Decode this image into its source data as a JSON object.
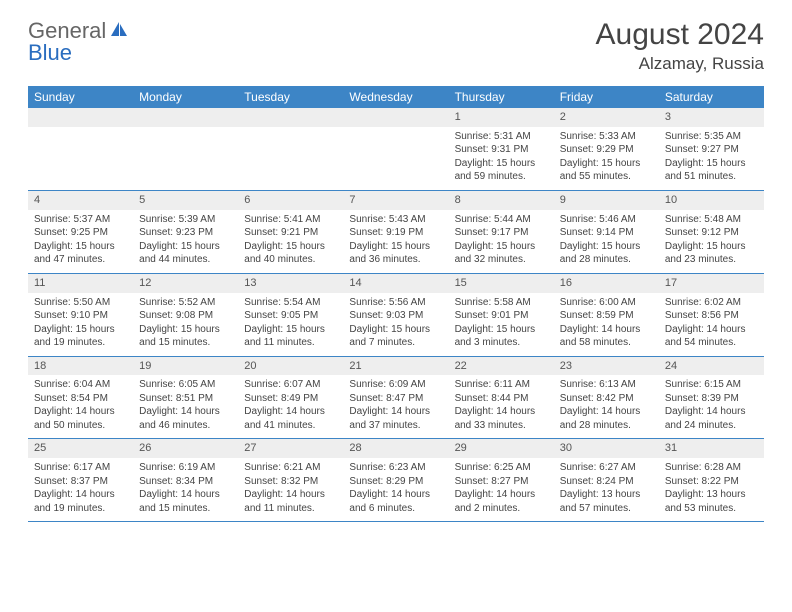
{
  "brand": {
    "word1": "General",
    "word2": "Blue",
    "blue_color": "#2a6dbf"
  },
  "header": {
    "month_title": "August 2024",
    "location": "Alzamay, Russia"
  },
  "colors": {
    "header_bg": "#3d85c6",
    "header_text": "#ffffff",
    "daynum_bg": "#eeeeee",
    "border": "#3d85c6",
    "text": "#444444"
  },
  "day_headers": [
    "Sunday",
    "Monday",
    "Tuesday",
    "Wednesday",
    "Thursday",
    "Friday",
    "Saturday"
  ],
  "weeks": [
    [
      {
        "num": "",
        "l1": "",
        "l2": "",
        "l3": "",
        "l4": ""
      },
      {
        "num": "",
        "l1": "",
        "l2": "",
        "l3": "",
        "l4": ""
      },
      {
        "num": "",
        "l1": "",
        "l2": "",
        "l3": "",
        "l4": ""
      },
      {
        "num": "",
        "l1": "",
        "l2": "",
        "l3": "",
        "l4": ""
      },
      {
        "num": "1",
        "l1": "Sunrise: 5:31 AM",
        "l2": "Sunset: 9:31 PM",
        "l3": "Daylight: 15 hours",
        "l4": "and 59 minutes."
      },
      {
        "num": "2",
        "l1": "Sunrise: 5:33 AM",
        "l2": "Sunset: 9:29 PM",
        "l3": "Daylight: 15 hours",
        "l4": "and 55 minutes."
      },
      {
        "num": "3",
        "l1": "Sunrise: 5:35 AM",
        "l2": "Sunset: 9:27 PM",
        "l3": "Daylight: 15 hours",
        "l4": "and 51 minutes."
      }
    ],
    [
      {
        "num": "4",
        "l1": "Sunrise: 5:37 AM",
        "l2": "Sunset: 9:25 PM",
        "l3": "Daylight: 15 hours",
        "l4": "and 47 minutes."
      },
      {
        "num": "5",
        "l1": "Sunrise: 5:39 AM",
        "l2": "Sunset: 9:23 PM",
        "l3": "Daylight: 15 hours",
        "l4": "and 44 minutes."
      },
      {
        "num": "6",
        "l1": "Sunrise: 5:41 AM",
        "l2": "Sunset: 9:21 PM",
        "l3": "Daylight: 15 hours",
        "l4": "and 40 minutes."
      },
      {
        "num": "7",
        "l1": "Sunrise: 5:43 AM",
        "l2": "Sunset: 9:19 PM",
        "l3": "Daylight: 15 hours",
        "l4": "and 36 minutes."
      },
      {
        "num": "8",
        "l1": "Sunrise: 5:44 AM",
        "l2": "Sunset: 9:17 PM",
        "l3": "Daylight: 15 hours",
        "l4": "and 32 minutes."
      },
      {
        "num": "9",
        "l1": "Sunrise: 5:46 AM",
        "l2": "Sunset: 9:14 PM",
        "l3": "Daylight: 15 hours",
        "l4": "and 28 minutes."
      },
      {
        "num": "10",
        "l1": "Sunrise: 5:48 AM",
        "l2": "Sunset: 9:12 PM",
        "l3": "Daylight: 15 hours",
        "l4": "and 23 minutes."
      }
    ],
    [
      {
        "num": "11",
        "l1": "Sunrise: 5:50 AM",
        "l2": "Sunset: 9:10 PM",
        "l3": "Daylight: 15 hours",
        "l4": "and 19 minutes."
      },
      {
        "num": "12",
        "l1": "Sunrise: 5:52 AM",
        "l2": "Sunset: 9:08 PM",
        "l3": "Daylight: 15 hours",
        "l4": "and 15 minutes."
      },
      {
        "num": "13",
        "l1": "Sunrise: 5:54 AM",
        "l2": "Sunset: 9:05 PM",
        "l3": "Daylight: 15 hours",
        "l4": "and 11 minutes."
      },
      {
        "num": "14",
        "l1": "Sunrise: 5:56 AM",
        "l2": "Sunset: 9:03 PM",
        "l3": "Daylight: 15 hours",
        "l4": "and 7 minutes."
      },
      {
        "num": "15",
        "l1": "Sunrise: 5:58 AM",
        "l2": "Sunset: 9:01 PM",
        "l3": "Daylight: 15 hours",
        "l4": "and 3 minutes."
      },
      {
        "num": "16",
        "l1": "Sunrise: 6:00 AM",
        "l2": "Sunset: 8:59 PM",
        "l3": "Daylight: 14 hours",
        "l4": "and 58 minutes."
      },
      {
        "num": "17",
        "l1": "Sunrise: 6:02 AM",
        "l2": "Sunset: 8:56 PM",
        "l3": "Daylight: 14 hours",
        "l4": "and 54 minutes."
      }
    ],
    [
      {
        "num": "18",
        "l1": "Sunrise: 6:04 AM",
        "l2": "Sunset: 8:54 PM",
        "l3": "Daylight: 14 hours",
        "l4": "and 50 minutes."
      },
      {
        "num": "19",
        "l1": "Sunrise: 6:05 AM",
        "l2": "Sunset: 8:51 PM",
        "l3": "Daylight: 14 hours",
        "l4": "and 46 minutes."
      },
      {
        "num": "20",
        "l1": "Sunrise: 6:07 AM",
        "l2": "Sunset: 8:49 PM",
        "l3": "Daylight: 14 hours",
        "l4": "and 41 minutes."
      },
      {
        "num": "21",
        "l1": "Sunrise: 6:09 AM",
        "l2": "Sunset: 8:47 PM",
        "l3": "Daylight: 14 hours",
        "l4": "and 37 minutes."
      },
      {
        "num": "22",
        "l1": "Sunrise: 6:11 AM",
        "l2": "Sunset: 8:44 PM",
        "l3": "Daylight: 14 hours",
        "l4": "and 33 minutes."
      },
      {
        "num": "23",
        "l1": "Sunrise: 6:13 AM",
        "l2": "Sunset: 8:42 PM",
        "l3": "Daylight: 14 hours",
        "l4": "and 28 minutes."
      },
      {
        "num": "24",
        "l1": "Sunrise: 6:15 AM",
        "l2": "Sunset: 8:39 PM",
        "l3": "Daylight: 14 hours",
        "l4": "and 24 minutes."
      }
    ],
    [
      {
        "num": "25",
        "l1": "Sunrise: 6:17 AM",
        "l2": "Sunset: 8:37 PM",
        "l3": "Daylight: 14 hours",
        "l4": "and 19 minutes."
      },
      {
        "num": "26",
        "l1": "Sunrise: 6:19 AM",
        "l2": "Sunset: 8:34 PM",
        "l3": "Daylight: 14 hours",
        "l4": "and 15 minutes."
      },
      {
        "num": "27",
        "l1": "Sunrise: 6:21 AM",
        "l2": "Sunset: 8:32 PM",
        "l3": "Daylight: 14 hours",
        "l4": "and 11 minutes."
      },
      {
        "num": "28",
        "l1": "Sunrise: 6:23 AM",
        "l2": "Sunset: 8:29 PM",
        "l3": "Daylight: 14 hours",
        "l4": "and 6 minutes."
      },
      {
        "num": "29",
        "l1": "Sunrise: 6:25 AM",
        "l2": "Sunset: 8:27 PM",
        "l3": "Daylight: 14 hours",
        "l4": "and 2 minutes."
      },
      {
        "num": "30",
        "l1": "Sunrise: 6:27 AM",
        "l2": "Sunset: 8:24 PM",
        "l3": "Daylight: 13 hours",
        "l4": "and 57 minutes."
      },
      {
        "num": "31",
        "l1": "Sunrise: 6:28 AM",
        "l2": "Sunset: 8:22 PM",
        "l3": "Daylight: 13 hours",
        "l4": "and 53 minutes."
      }
    ]
  ]
}
